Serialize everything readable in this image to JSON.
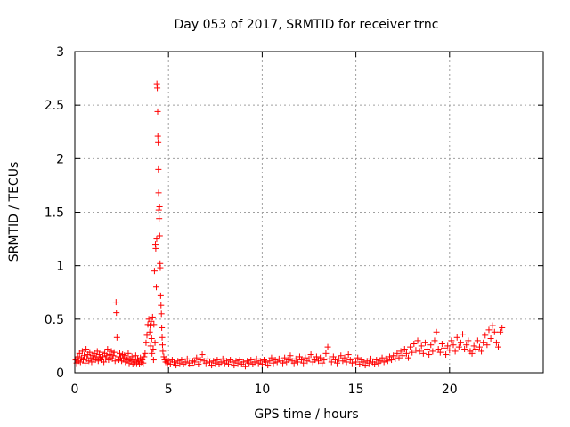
{
  "chart_data": {
    "type": "scatter",
    "title": "Day 053 of 2017, SRMTID for receiver trnc",
    "xlabel": "GPS time / hours",
    "ylabel": "SRMTID / TECUs",
    "xlim": [
      0,
      25
    ],
    "ylim": [
      0,
      3
    ],
    "xticks": [
      0,
      5,
      10,
      15,
      20
    ],
    "xtick_labels": [
      "0",
      "5",
      "10",
      "15",
      "20"
    ],
    "yticks": [
      0,
      0.5,
      1,
      1.5,
      2,
      2.5,
      3
    ],
    "ytick_labels": [
      "0",
      "0.5",
      "1",
      "1.5",
      "2",
      "2.5",
      "3"
    ],
    "grid": true,
    "marker": "+",
    "color": "#ff0000",
    "series": [
      {
        "name": "SRMTID",
        "points": [
          [
            0.05,
            0.12
          ],
          [
            0.1,
            0.09
          ],
          [
            0.15,
            0.15
          ],
          [
            0.2,
            0.11
          ],
          [
            0.25,
            0.18
          ],
          [
            0.3,
            0.1
          ],
          [
            0.35,
            0.14
          ],
          [
            0.4,
            0.2
          ],
          [
            0.45,
            0.12
          ],
          [
            0.5,
            0.16
          ],
          [
            0.55,
            0.09
          ],
          [
            0.6,
            0.22
          ],
          [
            0.65,
            0.13
          ],
          [
            0.7,
            0.17
          ],
          [
            0.75,
            0.11
          ],
          [
            0.8,
            0.19
          ],
          [
            0.85,
            0.14
          ],
          [
            0.9,
            0.1
          ],
          [
            0.95,
            0.16
          ],
          [
            1.0,
            0.13
          ],
          [
            1.05,
            0.18
          ],
          [
            1.1,
            0.12
          ],
          [
            1.15,
            0.15
          ],
          [
            1.2,
            0.2
          ],
          [
            1.25,
            0.11
          ],
          [
            1.3,
            0.17
          ],
          [
            1.35,
            0.14
          ],
          [
            1.4,
            0.12
          ],
          [
            1.45,
            0.19
          ],
          [
            1.5,
            0.15
          ],
          [
            1.55,
            0.1
          ],
          [
            1.6,
            0.18
          ],
          [
            1.65,
            0.13
          ],
          [
            1.7,
            0.16
          ],
          [
            1.75,
            0.22
          ],
          [
            1.8,
            0.12
          ],
          [
            1.85,
            0.17
          ],
          [
            1.9,
            0.14
          ],
          [
            1.95,
            0.2
          ],
          [
            2.0,
            0.13
          ],
          [
            2.05,
            0.16
          ],
          [
            2.1,
            0.19
          ],
          [
            2.15,
            0.11
          ],
          [
            2.2,
            0.66
          ],
          [
            2.22,
            0.56
          ],
          [
            2.25,
            0.33
          ],
          [
            2.3,
            0.15
          ],
          [
            2.35,
            0.12
          ],
          [
            2.4,
            0.18
          ],
          [
            2.45,
            0.14
          ],
          [
            2.5,
            0.11
          ],
          [
            2.55,
            0.17
          ],
          [
            2.6,
            0.13
          ],
          [
            2.65,
            0.16
          ],
          [
            2.7,
            0.1
          ],
          [
            2.75,
            0.14
          ],
          [
            2.8,
            0.12
          ],
          [
            2.85,
            0.18
          ],
          [
            2.9,
            0.09
          ],
          [
            2.95,
            0.13
          ],
          [
            3.0,
            0.11
          ],
          [
            3.05,
            0.15
          ],
          [
            3.1,
            0.08
          ],
          [
            3.15,
            0.12
          ],
          [
            3.2,
            0.1
          ],
          [
            3.25,
            0.16
          ],
          [
            3.3,
            0.09
          ],
          [
            3.35,
            0.13
          ],
          [
            3.4,
            0.11
          ],
          [
            3.45,
            0.08
          ],
          [
            3.5,
            0.14
          ],
          [
            3.55,
            0.1
          ],
          [
            3.6,
            0.12
          ],
          [
            3.65,
            0.09
          ],
          [
            3.7,
            0.15
          ],
          [
            3.75,
            0.18
          ],
          [
            3.8,
            0.28
          ],
          [
            3.85,
            0.35
          ],
          [
            3.9,
            0.45
          ],
          [
            3.95,
            0.5
          ],
          [
            4.0,
            0.38
          ],
          [
            4.02,
            0.44
          ],
          [
            4.05,
            0.25
          ],
          [
            4.08,
            0.48
          ],
          [
            4.1,
            0.32
          ],
          [
            4.12,
            0.18
          ],
          [
            4.15,
            0.52
          ],
          [
            4.18,
            0.22
          ],
          [
            4.2,
            0.12
          ],
          [
            4.22,
            0.45
          ],
          [
            4.25,
            0.95
          ],
          [
            4.28,
            0.28
          ],
          [
            4.3,
            1.2
          ],
          [
            4.32,
            1.16
          ],
          [
            4.35,
            0.8
          ],
          [
            4.37,
            1.25
          ],
          [
            4.38,
            2.7
          ],
          [
            4.4,
            2.66
          ],
          [
            4.42,
            2.44
          ],
          [
            4.43,
            2.21
          ],
          [
            4.45,
            2.15
          ],
          [
            4.46,
            1.9
          ],
          [
            4.47,
            1.68
          ],
          [
            4.48,
            1.52
          ],
          [
            4.5,
            1.44
          ],
          [
            4.52,
            1.55
          ],
          [
            4.53,
            1.28
          ],
          [
            4.55,
            1.02
          ],
          [
            4.56,
            0.98
          ],
          [
            4.58,
            0.72
          ],
          [
            4.6,
            0.63
          ],
          [
            4.62,
            0.55
          ],
          [
            4.64,
            0.42
          ],
          [
            4.66,
            0.33
          ],
          [
            4.68,
            0.26
          ],
          [
            4.7,
            0.2
          ],
          [
            4.75,
            0.15
          ],
          [
            4.8,
            0.12
          ],
          [
            4.85,
            0.1
          ],
          [
            4.9,
            0.13
          ],
          [
            4.95,
            0.09
          ],
          [
            5.0,
            0.11
          ],
          [
            5.1,
            0.08
          ],
          [
            5.2,
            0.12
          ],
          [
            5.3,
            0.1
          ],
          [
            5.4,
            0.07
          ],
          [
            5.5,
            0.11
          ],
          [
            5.6,
            0.09
          ],
          [
            5.7,
            0.12
          ],
          [
            5.8,
            0.08
          ],
          [
            5.9,
            0.1
          ],
          [
            6.0,
            0.13
          ],
          [
            6.1,
            0.09
          ],
          [
            6.2,
            0.07
          ],
          [
            6.3,
            0.11
          ],
          [
            6.4,
            0.1
          ],
          [
            6.5,
            0.14
          ],
          [
            6.6,
            0.08
          ],
          [
            6.7,
            0.12
          ],
          [
            6.8,
            0.17
          ],
          [
            6.9,
            0.11
          ],
          [
            7.0,
            0.09
          ],
          [
            7.1,
            0.13
          ],
          [
            7.2,
            0.1
          ],
          [
            7.3,
            0.07
          ],
          [
            7.4,
            0.11
          ],
          [
            7.5,
            0.09
          ],
          [
            7.6,
            0.12
          ],
          [
            7.7,
            0.08
          ],
          [
            7.8,
            0.1
          ],
          [
            7.9,
            0.13
          ],
          [
            8.0,
            0.09
          ],
          [
            8.1,
            0.11
          ],
          [
            8.2,
            0.08
          ],
          [
            8.3,
            0.12
          ],
          [
            8.4,
            0.1
          ],
          [
            8.5,
            0.07
          ],
          [
            8.6,
            0.11
          ],
          [
            8.7,
            0.09
          ],
          [
            8.8,
            0.12
          ],
          [
            8.9,
            0.08
          ],
          [
            9.0,
            0.1
          ],
          [
            9.1,
            0.06
          ],
          [
            9.2,
            0.11
          ],
          [
            9.3,
            0.09
          ],
          [
            9.4,
            0.12
          ],
          [
            9.5,
            0.08
          ],
          [
            9.6,
            0.1
          ],
          [
            9.7,
            0.13
          ],
          [
            9.8,
            0.09
          ],
          [
            9.9,
            0.11
          ],
          [
            10.0,
            0.08
          ],
          [
            10.1,
            0.12
          ],
          [
            10.2,
            0.1
          ],
          [
            10.3,
            0.07
          ],
          [
            10.4,
            0.11
          ],
          [
            10.5,
            0.14
          ],
          [
            10.6,
            0.09
          ],
          [
            10.7,
            0.12
          ],
          [
            10.8,
            0.1
          ],
          [
            10.9,
            0.13
          ],
          [
            11.0,
            0.11
          ],
          [
            11.1,
            0.09
          ],
          [
            11.2,
            0.14
          ],
          [
            11.3,
            0.1
          ],
          [
            11.4,
            0.12
          ],
          [
            11.5,
            0.16
          ],
          [
            11.6,
            0.11
          ],
          [
            11.7,
            0.09
          ],
          [
            11.8,
            0.13
          ],
          [
            11.9,
            0.1
          ],
          [
            12.0,
            0.15
          ],
          [
            12.1,
            0.12
          ],
          [
            12.2,
            0.09
          ],
          [
            12.3,
            0.14
          ],
          [
            12.4,
            0.11
          ],
          [
            12.5,
            0.13
          ],
          [
            12.6,
            0.17
          ],
          [
            12.7,
            0.1
          ],
          [
            12.8,
            0.12
          ],
          [
            12.9,
            0.15
          ],
          [
            13.0,
            0.11
          ],
          [
            13.1,
            0.14
          ],
          [
            13.2,
            0.09
          ],
          [
            13.3,
            0.12
          ],
          [
            13.4,
            0.18
          ],
          [
            13.5,
            0.24
          ],
          [
            13.6,
            0.13
          ],
          [
            13.7,
            0.1
          ],
          [
            13.8,
            0.15
          ],
          [
            13.9,
            0.12
          ],
          [
            14.0,
            0.09
          ],
          [
            14.1,
            0.13
          ],
          [
            14.2,
            0.16
          ],
          [
            14.3,
            0.11
          ],
          [
            14.4,
            0.14
          ],
          [
            14.5,
            0.1
          ],
          [
            14.6,
            0.17
          ],
          [
            14.7,
            0.12
          ],
          [
            14.8,
            0.09
          ],
          [
            14.9,
            0.13
          ],
          [
            15.0,
            0.1
          ],
          [
            15.1,
            0.14
          ],
          [
            15.2,
            0.08
          ],
          [
            15.3,
            0.12
          ],
          [
            15.4,
            0.1
          ],
          [
            15.5,
            0.07
          ],
          [
            15.6,
            0.11
          ],
          [
            15.7,
            0.09
          ],
          [
            15.8,
            0.13
          ],
          [
            15.9,
            0.1
          ],
          [
            16.0,
            0.08
          ],
          [
            16.1,
            0.12
          ],
          [
            16.2,
            0.09
          ],
          [
            16.3,
            0.11
          ],
          [
            16.4,
            0.14
          ],
          [
            16.5,
            0.1
          ],
          [
            16.6,
            0.13
          ],
          [
            16.7,
            0.11
          ],
          [
            16.8,
            0.15
          ],
          [
            16.9,
            0.12
          ],
          [
            17.0,
            0.16
          ],
          [
            17.1,
            0.13
          ],
          [
            17.2,
            0.18
          ],
          [
            17.3,
            0.14
          ],
          [
            17.4,
            0.2
          ],
          [
            17.5,
            0.16
          ],
          [
            17.6,
            0.22
          ],
          [
            17.7,
            0.18
          ],
          [
            17.8,
            0.14
          ],
          [
            17.9,
            0.24
          ],
          [
            18.0,
            0.19
          ],
          [
            18.1,
            0.27
          ],
          [
            18.2,
            0.21
          ],
          [
            18.3,
            0.3
          ],
          [
            18.4,
            0.2
          ],
          [
            18.5,
            0.25
          ],
          [
            18.6,
            0.18
          ],
          [
            18.7,
            0.28
          ],
          [
            18.8,
            0.22
          ],
          [
            18.9,
            0.17
          ],
          [
            19.0,
            0.26
          ],
          [
            19.1,
            0.2
          ],
          [
            19.2,
            0.3
          ],
          [
            19.3,
            0.38
          ],
          [
            19.4,
            0.22
          ],
          [
            19.5,
            0.19
          ],
          [
            19.6,
            0.27
          ],
          [
            19.7,
            0.23
          ],
          [
            19.8,
            0.17
          ],
          [
            19.9,
            0.25
          ],
          [
            20.0,
            0.21
          ],
          [
            20.1,
            0.3
          ],
          [
            20.2,
            0.26
          ],
          [
            20.3,
            0.2
          ],
          [
            20.4,
            0.33
          ],
          [
            20.5,
            0.24
          ],
          [
            20.6,
            0.28
          ],
          [
            20.7,
            0.36
          ],
          [
            20.8,
            0.22
          ],
          [
            20.9,
            0.26
          ],
          [
            21.0,
            0.3
          ],
          [
            21.1,
            0.2
          ],
          [
            21.2,
            0.18
          ],
          [
            21.3,
            0.25
          ],
          [
            21.4,
            0.22
          ],
          [
            21.5,
            0.3
          ],
          [
            21.6,
            0.24
          ],
          [
            21.7,
            0.2
          ],
          [
            21.8,
            0.28
          ],
          [
            21.9,
            0.35
          ],
          [
            22.0,
            0.26
          ],
          [
            22.1,
            0.4
          ],
          [
            22.2,
            0.32
          ],
          [
            22.3,
            0.44
          ],
          [
            22.4,
            0.38
          ],
          [
            22.5,
            0.28
          ],
          [
            22.6,
            0.24
          ],
          [
            22.7,
            0.38
          ],
          [
            22.8,
            0.42
          ]
        ]
      }
    ]
  }
}
